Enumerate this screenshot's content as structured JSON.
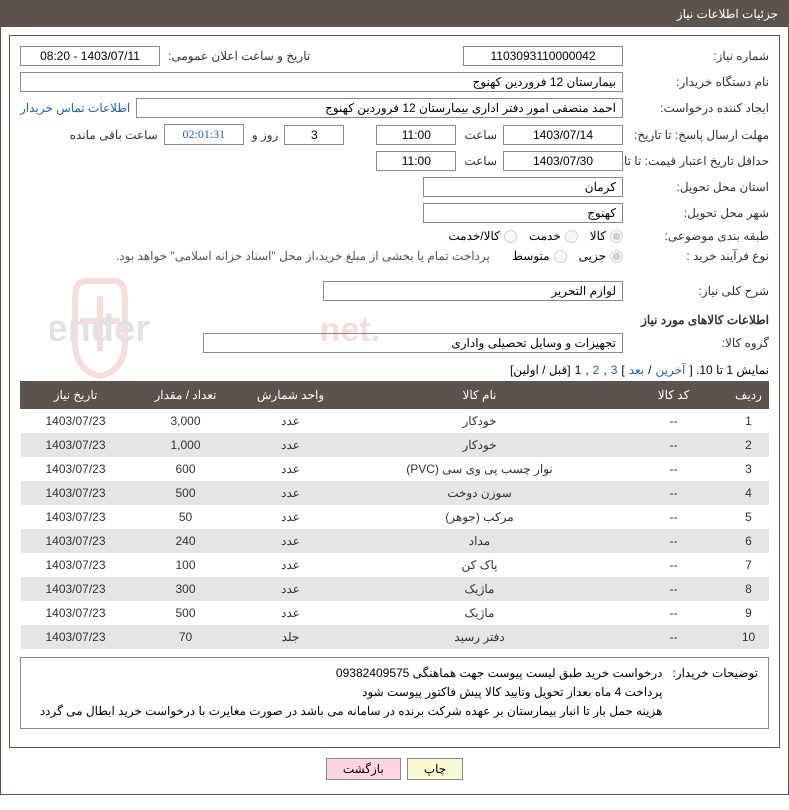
{
  "header": {
    "title": "جزئیات اطلاعات نیاز"
  },
  "form": {
    "need_number_label": "شماره نیاز:",
    "need_number": "1103093110000042",
    "announce_datetime_label": "تاریخ و ساعت اعلان عمومی:",
    "announce_datetime": "1403/07/11 - 08:20",
    "buyer_org_label": "نام دستگاه خریدار:",
    "buyer_org": "بیمارستان 12 فروردین کهنوج",
    "requester_label": "ایجاد کننده درخواست:",
    "requester": "احمد منصفی امور دفتر اداری بیمارستان 12 فروردین کهنوج",
    "buyer_contact_link": "اطلاعات تماس خریدار",
    "reply_deadline_label": "مهلت ارسال پاسخ: تا تاریخ:",
    "reply_date": "1403/07/14",
    "time_label": "ساعت",
    "reply_time": "11:00",
    "days_value": "3",
    "days_and_label": "روز و",
    "countdown": "02:01:31",
    "remaining_label": "ساعت باقی مانده",
    "validity_label": "حداقل تاریخ اعتبار قیمت: تا تاریخ:",
    "validity_date": "1403/07/30",
    "validity_time": "11:00",
    "province_label": "استان محل تحویل:",
    "province": "کرمان",
    "city_label": "شهر محل تحویل:",
    "city": "کهنوج",
    "category_label": "طبقه بندی موضوعی:",
    "cat_goods": "کالا",
    "cat_service": "خدمت",
    "cat_both": "کالا/خدمت",
    "process_label": "نوع فرآیند خرید :",
    "proc_partial": "جزیی",
    "proc_medium": "متوسط",
    "payment_note": "پرداخت تمام یا بخشی از مبلغ خرید،از محل \"اسناد خزانه اسلامی\" خواهد بود.",
    "general_desc_label": "شرح کلی نیاز:",
    "general_desc": "لوازم التحریر"
  },
  "goods_section_title": "اطلاعات کالاهای مورد نیاز",
  "group_label": "گروه کالا:",
  "group_value": "تجهیزات و وسایل تحصیلی واداری",
  "pager": {
    "display_text": "نمایش 1 تا 10. [",
    "last": "آخرین",
    "sep1": " / ",
    "next": "بعد",
    "bracket": "] ",
    "p3": "3",
    "comma1": ", ",
    "p2": "2",
    "comma2": ", ",
    "p1": "1",
    "tail": " [قبل / اولین]"
  },
  "table": {
    "headers": {
      "row": "ردیف",
      "code": "کد کالا",
      "name": "نام کالا",
      "unit": "واحد شمارش",
      "qty": "تعداد / مقدار",
      "date": "تاریخ نیاز"
    },
    "rows": [
      {
        "n": "1",
        "code": "--",
        "name": "خودکار",
        "unit": "عدد",
        "qty": "3,000",
        "date": "1403/07/23"
      },
      {
        "n": "2",
        "code": "--",
        "name": "خودکار",
        "unit": "عدد",
        "qty": "1,000",
        "date": "1403/07/23"
      },
      {
        "n": "3",
        "code": "--",
        "name": "نوار چسب پی وی سی (PVC)",
        "unit": "عدد",
        "qty": "600",
        "date": "1403/07/23"
      },
      {
        "n": "4",
        "code": "--",
        "name": "سوزن دوخت",
        "unit": "عدد",
        "qty": "500",
        "date": "1403/07/23"
      },
      {
        "n": "5",
        "code": "--",
        "name": "مرکب (جوهر)",
        "unit": "عدد",
        "qty": "50",
        "date": "1403/07/23"
      },
      {
        "n": "6",
        "code": "--",
        "name": "مداد",
        "unit": "عدد",
        "qty": "240",
        "date": "1403/07/23"
      },
      {
        "n": "7",
        "code": "--",
        "name": "پاک کن",
        "unit": "عدد",
        "qty": "100",
        "date": "1403/07/23"
      },
      {
        "n": "8",
        "code": "--",
        "name": "ماژیک",
        "unit": "عدد",
        "qty": "300",
        "date": "1403/07/23"
      },
      {
        "n": "9",
        "code": "--",
        "name": "ماژیک",
        "unit": "عدد",
        "qty": "500",
        "date": "1403/07/23"
      },
      {
        "n": "10",
        "code": "--",
        "name": "دفتر رسید",
        "unit": "جلد",
        "qty": "70",
        "date": "1403/07/23"
      }
    ]
  },
  "notes": {
    "label": "توضیحات خریدار:",
    "line1": "درخواست خرید طبق لیست پیوست جهت هماهنگی 09382409575",
    "line2": "پرداخت 4 ماه بعداز تحویل وتایید کالا پیش فاکتور پیوست شود",
    "line3": "هزینه حمل بار تا انبار بیمارستان بر عهده شرکت برنده در سامانه می باشد در صورت مغایرت با درخواست خرید ابطال می گردد"
  },
  "buttons": {
    "print": "چاپ",
    "back": "بازگشت"
  },
  "colors": {
    "header_bg": "#5c524f",
    "link": "#2060c0",
    "btn_print": "#fafad2",
    "btn_back": "#ffd6e0",
    "row_alt": "#e5e5e5"
  },
  "col_widths": {
    "row": "40px",
    "code": "110px",
    "name": "auto",
    "unit": "100px",
    "qty": "110px",
    "date": "110px"
  }
}
